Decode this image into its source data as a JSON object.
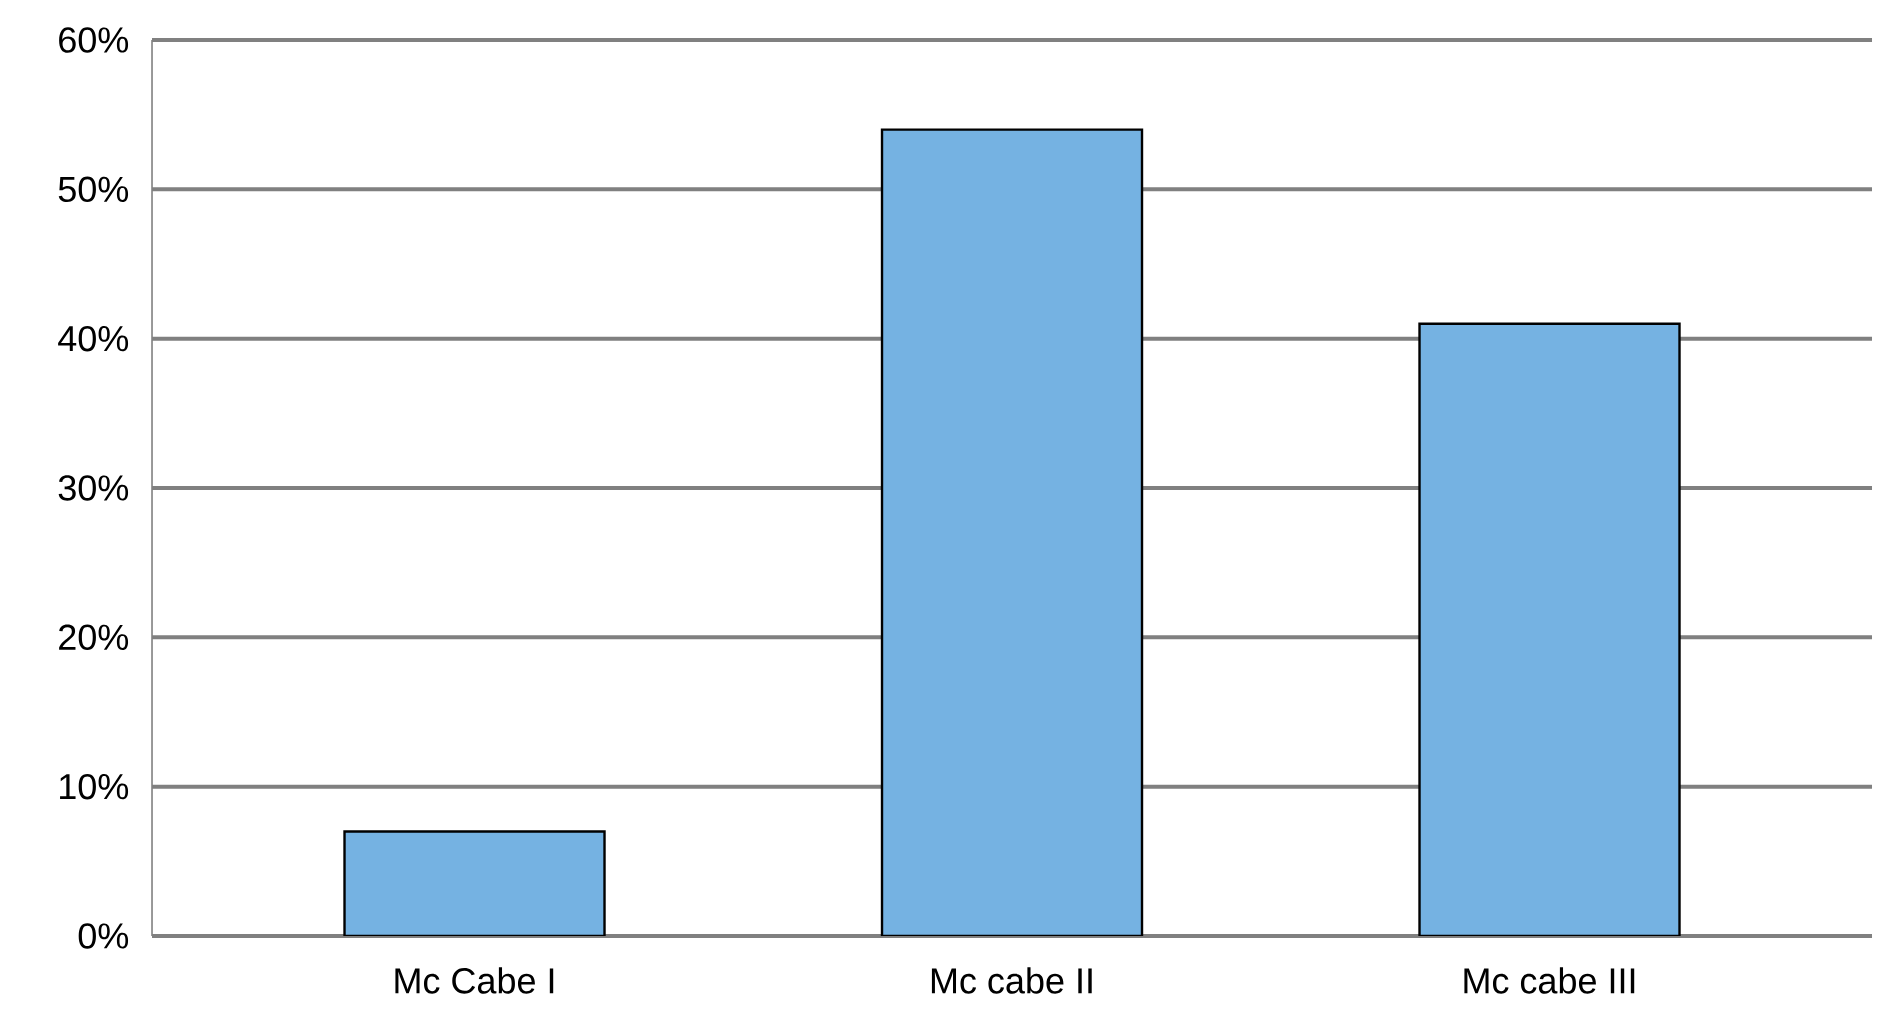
{
  "chart_data": {
    "type": "bar",
    "categories": [
      "Mc Cabe I",
      "Mc cabe II",
      "Mc cabe III"
    ],
    "values": [
      7,
      54,
      41
    ],
    "color": "#75b2e2",
    "ylim": [
      0,
      60
    ],
    "yticks": [
      {
        "value": 0,
        "label": "0%"
      },
      {
        "value": 10,
        "label": "10%"
      },
      {
        "value": 20,
        "label": "20%"
      },
      {
        "value": 30,
        "label": "30%"
      },
      {
        "value": 40,
        "label": "40%"
      },
      {
        "value": 50,
        "label": "50%"
      },
      {
        "value": 60,
        "label": "60%"
      }
    ],
    "grid": "y"
  }
}
